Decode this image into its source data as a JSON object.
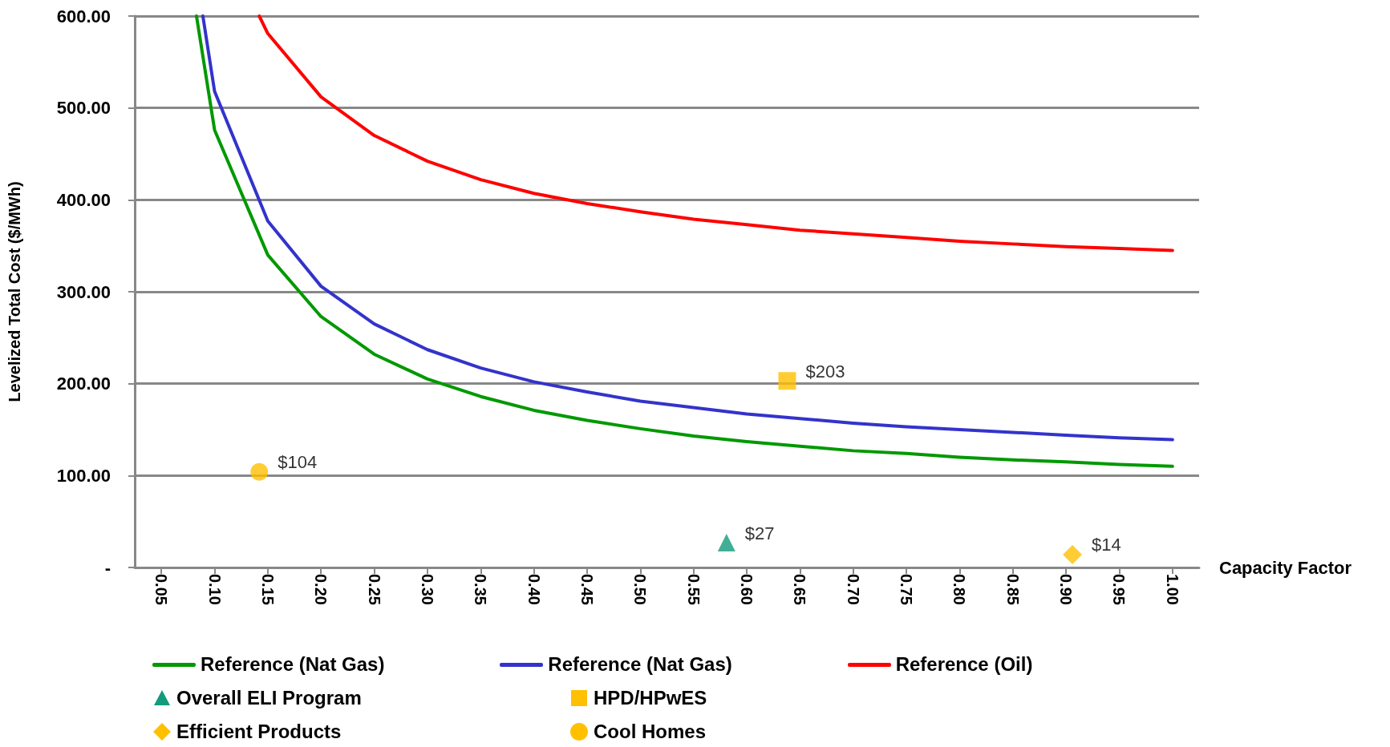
{
  "chart_data": {
    "type": "line",
    "xlabel": "Capacity Factor",
    "ylabel": "Levelized Total Cost ($/MWh)",
    "xlim": [
      0.025,
      1.025
    ],
    "xticks": [
      {
        "value": 0.05,
        "label": "0.05"
      },
      {
        "value": 0.1,
        "label": "0.10"
      },
      {
        "value": 0.15,
        "label": "0.15"
      },
      {
        "value": 0.2,
        "label": "0.20"
      },
      {
        "value": 0.25,
        "label": "0.25"
      },
      {
        "value": 0.3,
        "label": "0.30"
      },
      {
        "value": 0.35,
        "label": "0.35"
      },
      {
        "value": 0.4,
        "label": "0.40"
      },
      {
        "value": 0.45,
        "label": "0.45"
      },
      {
        "value": 0.5,
        "label": "0.50"
      },
      {
        "value": 0.55,
        "label": "0.55"
      },
      {
        "value": 0.6,
        "label": "0.60"
      },
      {
        "value": 0.65,
        "label": "0.65"
      },
      {
        "value": 0.7,
        "label": "0.70"
      },
      {
        "value": 0.75,
        "label": "0.75"
      },
      {
        "value": 0.8,
        "label": "0.80"
      },
      {
        "value": 0.85,
        "label": "0.85"
      },
      {
        "value": 0.9,
        "label": "0.90"
      },
      {
        "value": 0.95,
        "label": "0.95"
      },
      {
        "value": 1.0,
        "label": "1.00"
      }
    ],
    "ylim": [
      0,
      600
    ],
    "yticks": [
      {
        "value": 0,
        "label": "-"
      },
      {
        "value": 100,
        "label": "100.00"
      },
      {
        "value": 200,
        "label": "200.00"
      },
      {
        "value": 300,
        "label": "300.00"
      },
      {
        "value": 400,
        "label": "400.00"
      },
      {
        "value": 500,
        "label": "500.00"
      },
      {
        "value": 600,
        "label": "600.00"
      }
    ],
    "grid": "y",
    "legend": "bottom",
    "line_style": "solid",
    "series": [
      {
        "name": "Reference (Nat Gas)",
        "marker": "none",
        "color": "#009900",
        "x": [
          0.083,
          0.1,
          0.15,
          0.2,
          0.25,
          0.3,
          0.35,
          0.4,
          0.45,
          0.5,
          0.55,
          0.6,
          0.65,
          0.7,
          0.75,
          0.8,
          0.85,
          0.9,
          0.95,
          1.0
        ],
        "values": [
          600,
          476,
          340,
          273,
          232,
          205,
          186,
          171,
          160,
          151,
          143,
          137,
          132,
          127,
          124,
          120,
          117,
          115,
          112,
          110
        ]
      },
      {
        "name": "Reference (Nat Gas)",
        "marker": "none",
        "color": "#3333cc",
        "x": [
          0.089,
          0.1,
          0.15,
          0.2,
          0.25,
          0.3,
          0.35,
          0.4,
          0.45,
          0.5,
          0.55,
          0.6,
          0.65,
          0.7,
          0.75,
          0.8,
          0.85,
          0.9,
          0.95,
          1.0
        ],
        "values": [
          600,
          518,
          377,
          306,
          265,
          237,
          217,
          202,
          191,
          181,
          174,
          167,
          162,
          157,
          153,
          150,
          147,
          144,
          141,
          139
        ]
      },
      {
        "name": "Reference (Oil)",
        "marker": "none",
        "color": "#ff0000",
        "x": [
          0.142,
          0.15,
          0.2,
          0.25,
          0.3,
          0.35,
          0.4,
          0.45,
          0.5,
          0.55,
          0.6,
          0.65,
          0.7,
          0.75,
          0.8,
          0.85,
          0.9,
          0.95,
          1.0
        ],
        "values": [
          600,
          581,
          512,
          470,
          442,
          422,
          407,
          396,
          387,
          379,
          373,
          367,
          363,
          359,
          355,
          352,
          349,
          347,
          345
        ]
      },
      {
        "name": "Overall ELI Program",
        "type": "scatter",
        "marker": "triangle",
        "color": "#129b7c",
        "x": [
          0.581
        ],
        "values": [
          27
        ],
        "value_labels": [
          "$27"
        ]
      },
      {
        "name": "HPD/HPwES",
        "type": "scatter",
        "marker": "square",
        "color": "#ffc000",
        "x": [
          0.638
        ],
        "values": [
          203
        ],
        "value_labels": [
          "$203"
        ]
      },
      {
        "name": "Efficient Products",
        "type": "scatter",
        "marker": "diamond",
        "color": "#ffc000",
        "x": [
          0.906
        ],
        "values": [
          14
        ],
        "value_labels": [
          "$14"
        ]
      },
      {
        "name": "Cool Homes",
        "type": "scatter",
        "marker": "circle",
        "color": "#ffc000",
        "x": [
          0.142
        ],
        "values": [
          104
        ],
        "value_labels": [
          "$104"
        ]
      }
    ]
  }
}
